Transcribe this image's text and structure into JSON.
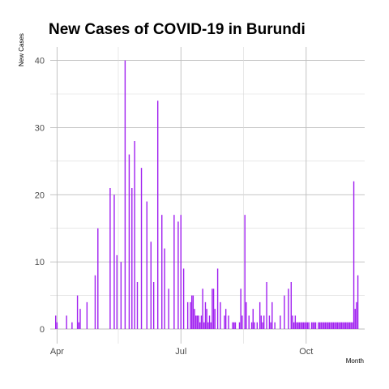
{
  "chart_data": {
    "type": "bar",
    "title": "New Cases of COVID-19 in Burundi",
    "xlabel": "Month",
    "ylabel": "New Cases",
    "ylim": [
      0,
      42
    ],
    "yticks": [
      "0",
      "10",
      "20",
      "30",
      "40"
    ],
    "xticks": [
      "Apr",
      "Jul",
      "Oct"
    ],
    "xrange": [
      "2020-03-27",
      "2020-11-13"
    ],
    "grid": true,
    "color": "#A020F0",
    "series": [
      {
        "dates": [
          "2020-03-31",
          "2020-04-01",
          "2020-04-08",
          "2020-04-12",
          "2020-04-16",
          "2020-04-17",
          "2020-04-18",
          "2020-04-23",
          "2020-04-29",
          "2020-05-01",
          "2020-05-10",
          "2020-05-13",
          "2020-05-15",
          "2020-05-18",
          "2020-05-21",
          "2020-05-24",
          "2020-05-26",
          "2020-05-28",
          "2020-05-30",
          "2020-06-02",
          "2020-06-06",
          "2020-06-09",
          "2020-06-11",
          "2020-06-14",
          "2020-06-17",
          "2020-06-19",
          "2020-06-22",
          "2020-06-26",
          "2020-06-29",
          "2020-07-01",
          "2020-07-03",
          "2020-07-06",
          "2020-07-08",
          "2020-07-09",
          "2020-07-10",
          "2020-07-11",
          "2020-07-12",
          "2020-07-13",
          "2020-07-14",
          "2020-07-15",
          "2020-07-16",
          "2020-07-17",
          "2020-07-18",
          "2020-07-19",
          "2020-07-20",
          "2020-07-21",
          "2020-07-22",
          "2020-07-23",
          "2020-07-24",
          "2020-07-25",
          "2020-07-26",
          "2020-07-28",
          "2020-07-30",
          "2020-08-02",
          "2020-08-03",
          "2020-08-05",
          "2020-08-08",
          "2020-08-09",
          "2020-08-10",
          "2020-08-13",
          "2020-08-14",
          "2020-08-15",
          "2020-08-17",
          "2020-08-18",
          "2020-08-20",
          "2020-08-22",
          "2020-08-23",
          "2020-08-24",
          "2020-08-26",
          "2020-08-28",
          "2020-08-29",
          "2020-08-30",
          "2020-08-31",
          "2020-09-02",
          "2020-09-04",
          "2020-09-05",
          "2020-09-06",
          "2020-09-08",
          "2020-09-12",
          "2020-09-15",
          "2020-09-18",
          "2020-09-20",
          "2020-09-21",
          "2020-09-22",
          "2020-09-23",
          "2020-09-24",
          "2020-09-25",
          "2020-09-26",
          "2020-09-27",
          "2020-09-28",
          "2020-09-29",
          "2020-09-30",
          "2020-10-01",
          "2020-10-02",
          "2020-10-03",
          "2020-10-05",
          "2020-10-06",
          "2020-10-07",
          "2020-10-08",
          "2020-10-10",
          "2020-10-11",
          "2020-10-12",
          "2020-10-13",
          "2020-10-14",
          "2020-10-15",
          "2020-10-16",
          "2020-10-17",
          "2020-10-18",
          "2020-10-19",
          "2020-10-20",
          "2020-10-21",
          "2020-10-22",
          "2020-10-23",
          "2020-10-24",
          "2020-10-25",
          "2020-10-26",
          "2020-10-27",
          "2020-10-28",
          "2020-10-29",
          "2020-10-30",
          "2020-10-31",
          "2020-11-01",
          "2020-11-02",
          "2020-11-03",
          "2020-11-04",
          "2020-11-05",
          "2020-11-06",
          "2020-11-07",
          "2020-11-08"
        ],
        "values": [
          2,
          1,
          2,
          1,
          5,
          1,
          3,
          4,
          8,
          15,
          21,
          20,
          11,
          10,
          40,
          26,
          21,
          28,
          7,
          24,
          19,
          13,
          7,
          34,
          17,
          12,
          6,
          17,
          16,
          17,
          9,
          4,
          4,
          5,
          5,
          3,
          2,
          2,
          2,
          1,
          2,
          6,
          1,
          4,
          3,
          1,
          2,
          1,
          6,
          6,
          3,
          9,
          4,
          2,
          3,
          2,
          1,
          1,
          1,
          1,
          6,
          2,
          17,
          4,
          2,
          1,
          3,
          1,
          1,
          4,
          2,
          1,
          2,
          7,
          2,
          1,
          4,
          1,
          2,
          5,
          6,
          7,
          2,
          1,
          2,
          1,
          1,
          1,
          1,
          1,
          1,
          1,
          1,
          1,
          1,
          1,
          1,
          1,
          1,
          1,
          1,
          1,
          1,
          1,
          1,
          1,
          1,
          1,
          1,
          1,
          1,
          1,
          1,
          1,
          1,
          1,
          1,
          1,
          1,
          1,
          1,
          1,
          1,
          1,
          1,
          22,
          3,
          4,
          8
        ]
      }
    ]
  }
}
